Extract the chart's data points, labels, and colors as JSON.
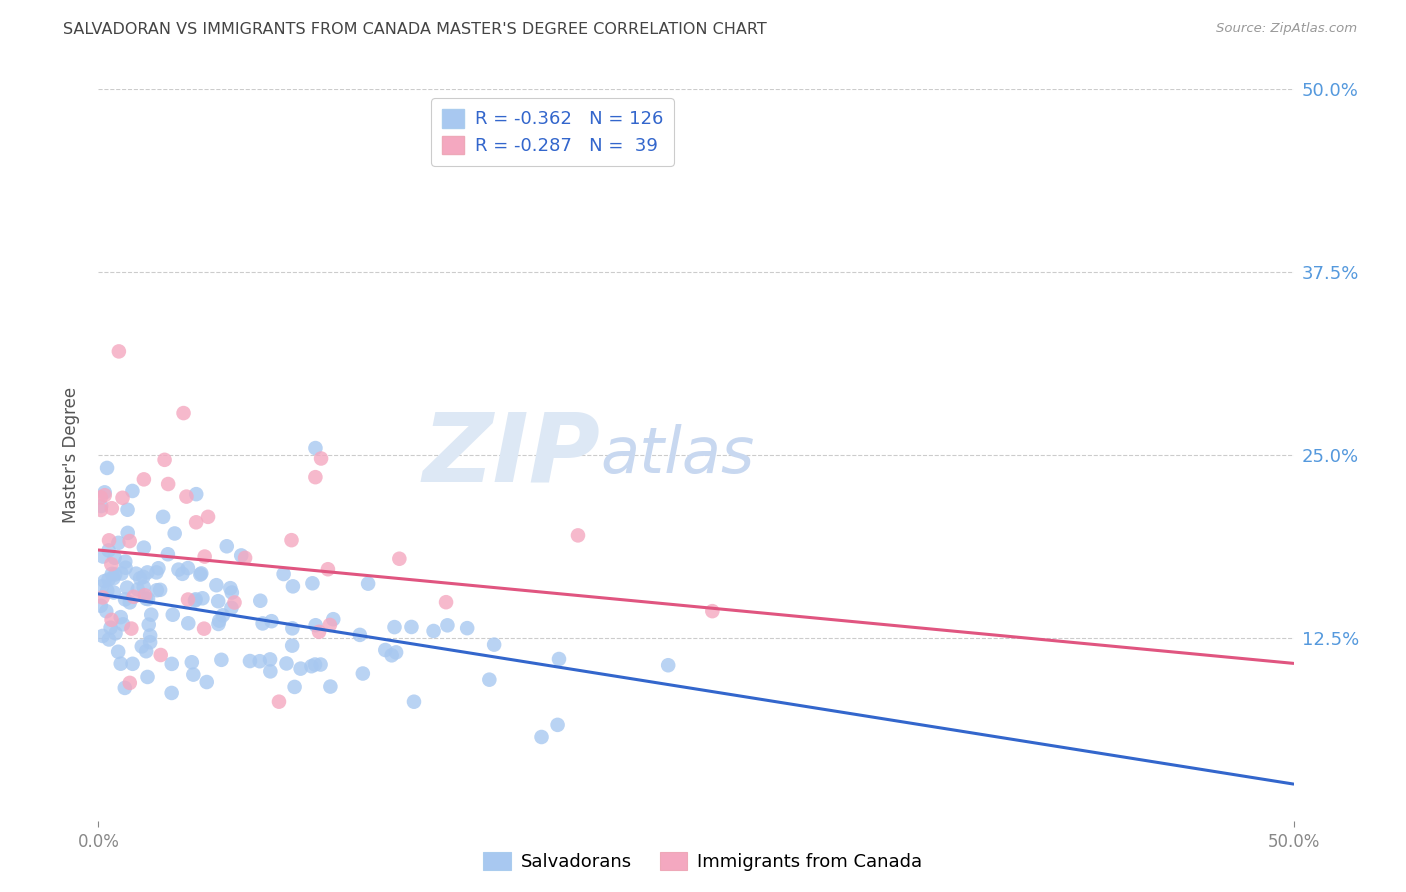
{
  "title": "SALVADORAN VS IMMIGRANTS FROM CANADA MASTER'S DEGREE CORRELATION CHART",
  "source": "Source: ZipAtlas.com",
  "ylabel": "Master's Degree",
  "xlim": [
    0.0,
    0.5
  ],
  "ylim": [
    0.0,
    0.5
  ],
  "ytick_values": [
    0.125,
    0.25,
    0.375,
    0.5
  ],
  "ytick_right_labels": [
    "12.5%",
    "25.0%",
    "37.5%",
    "50.0%"
  ],
  "blue_R": -0.362,
  "blue_N": 126,
  "pink_R": -0.287,
  "pink_N": 39,
  "blue_color": "#a8c8f0",
  "pink_color": "#f4a8c0",
  "blue_line_color": "#3366cc",
  "pink_line_color": "#e05580",
  "blue_intercept": 0.155,
  "blue_slope": -0.26,
  "pink_intercept": 0.185,
  "pink_slope": -0.155,
  "legend_blue_label": "Salvadorans",
  "legend_pink_label": "Immigrants from Canada",
  "watermark_zip": "ZIP",
  "watermark_atlas": "atlas",
  "background_color": "#ffffff",
  "grid_color": "#cccccc",
  "title_color": "#444444",
  "right_tick_color": "#5599dd",
  "stat_label_color": "#3366cc"
}
